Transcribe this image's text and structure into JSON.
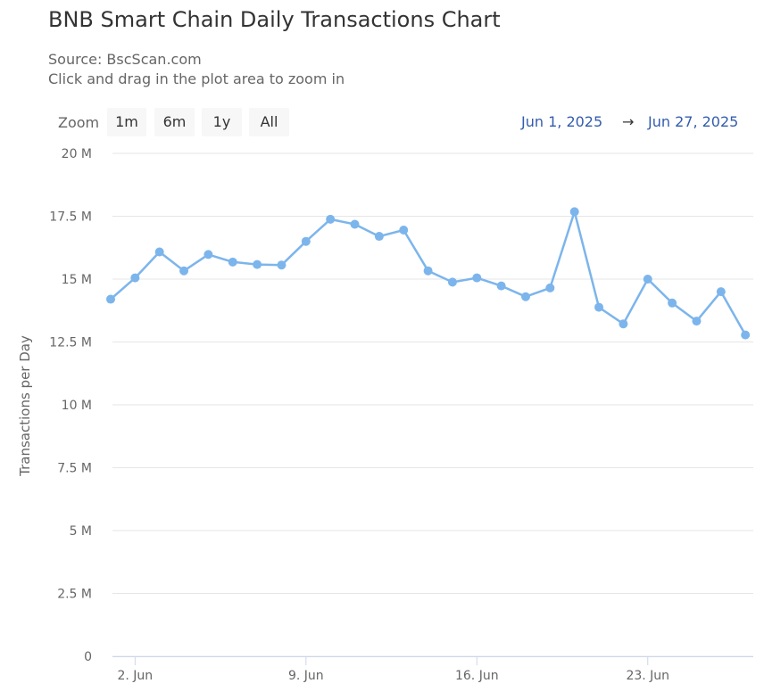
{
  "header": {
    "title": "BNB Smart Chain Daily Transactions Chart",
    "source": "Source: BscScan.com",
    "hint": "Click and drag in the plot area to zoom in"
  },
  "zoom": {
    "label": "Zoom",
    "buttons": [
      "1m",
      "6m",
      "1y",
      "All"
    ]
  },
  "range": {
    "from": "Jun 1, 2025",
    "arrow": "→",
    "to": "Jun 27, 2025"
  },
  "colors": {
    "series": "#7cb5ec",
    "grid": "#e6e6e6",
    "range_text": "#335cad"
  },
  "chart_data": {
    "type": "line",
    "title": "BNB Smart Chain Daily Transactions Chart",
    "ylabel": "Transactions per Day",
    "xlabel": "",
    "ylim": [
      0,
      20000000
    ],
    "y_ticks": [
      0,
      2500000,
      5000000,
      7500000,
      10000000,
      12500000,
      15000000,
      17500000,
      20000000
    ],
    "y_tick_labels": [
      "0",
      "2.5 M",
      "5 M",
      "7.5 M",
      "10 M",
      "12.5 M",
      "15 M",
      "17.5 M",
      "20 M"
    ],
    "x_tick_days": [
      2,
      9,
      16,
      23
    ],
    "x_tick_labels": [
      "2. Jun",
      "9. Jun",
      "16. Jun",
      "23. Jun"
    ],
    "x_range_days": [
      1,
      27
    ],
    "series": [
      {
        "x": [
          "2025-06-01",
          "2025-06-02",
          "2025-06-03",
          "2025-06-04",
          "2025-06-05",
          "2025-06-06",
          "2025-06-07",
          "2025-06-08",
          "2025-06-09",
          "2025-06-10",
          "2025-06-11",
          "2025-06-12",
          "2025-06-13",
          "2025-06-14",
          "2025-06-15",
          "2025-06-16",
          "2025-06-17",
          "2025-06-18",
          "2025-06-19",
          "2025-06-20",
          "2025-06-21",
          "2025-06-22",
          "2025-06-23",
          "2025-06-24",
          "2025-06-25",
          "2025-06-26",
          "2025-06-27"
        ],
        "days": [
          1,
          2,
          3,
          4,
          5,
          6,
          7,
          8,
          9,
          10,
          11,
          12,
          13,
          14,
          15,
          16,
          17,
          18,
          19,
          20,
          21,
          22,
          23,
          24,
          25,
          26,
          27
        ],
        "values": [
          14200000,
          15050000,
          16080000,
          15330000,
          15980000,
          15680000,
          15580000,
          15560000,
          16500000,
          17380000,
          17180000,
          16700000,
          16950000,
          15330000,
          14880000,
          15050000,
          14730000,
          14300000,
          14650000,
          17680000,
          13880000,
          13220000,
          15000000,
          14050000,
          13330000,
          14500000,
          12780000
        ]
      }
    ],
    "grid": true,
    "legend": "none"
  }
}
